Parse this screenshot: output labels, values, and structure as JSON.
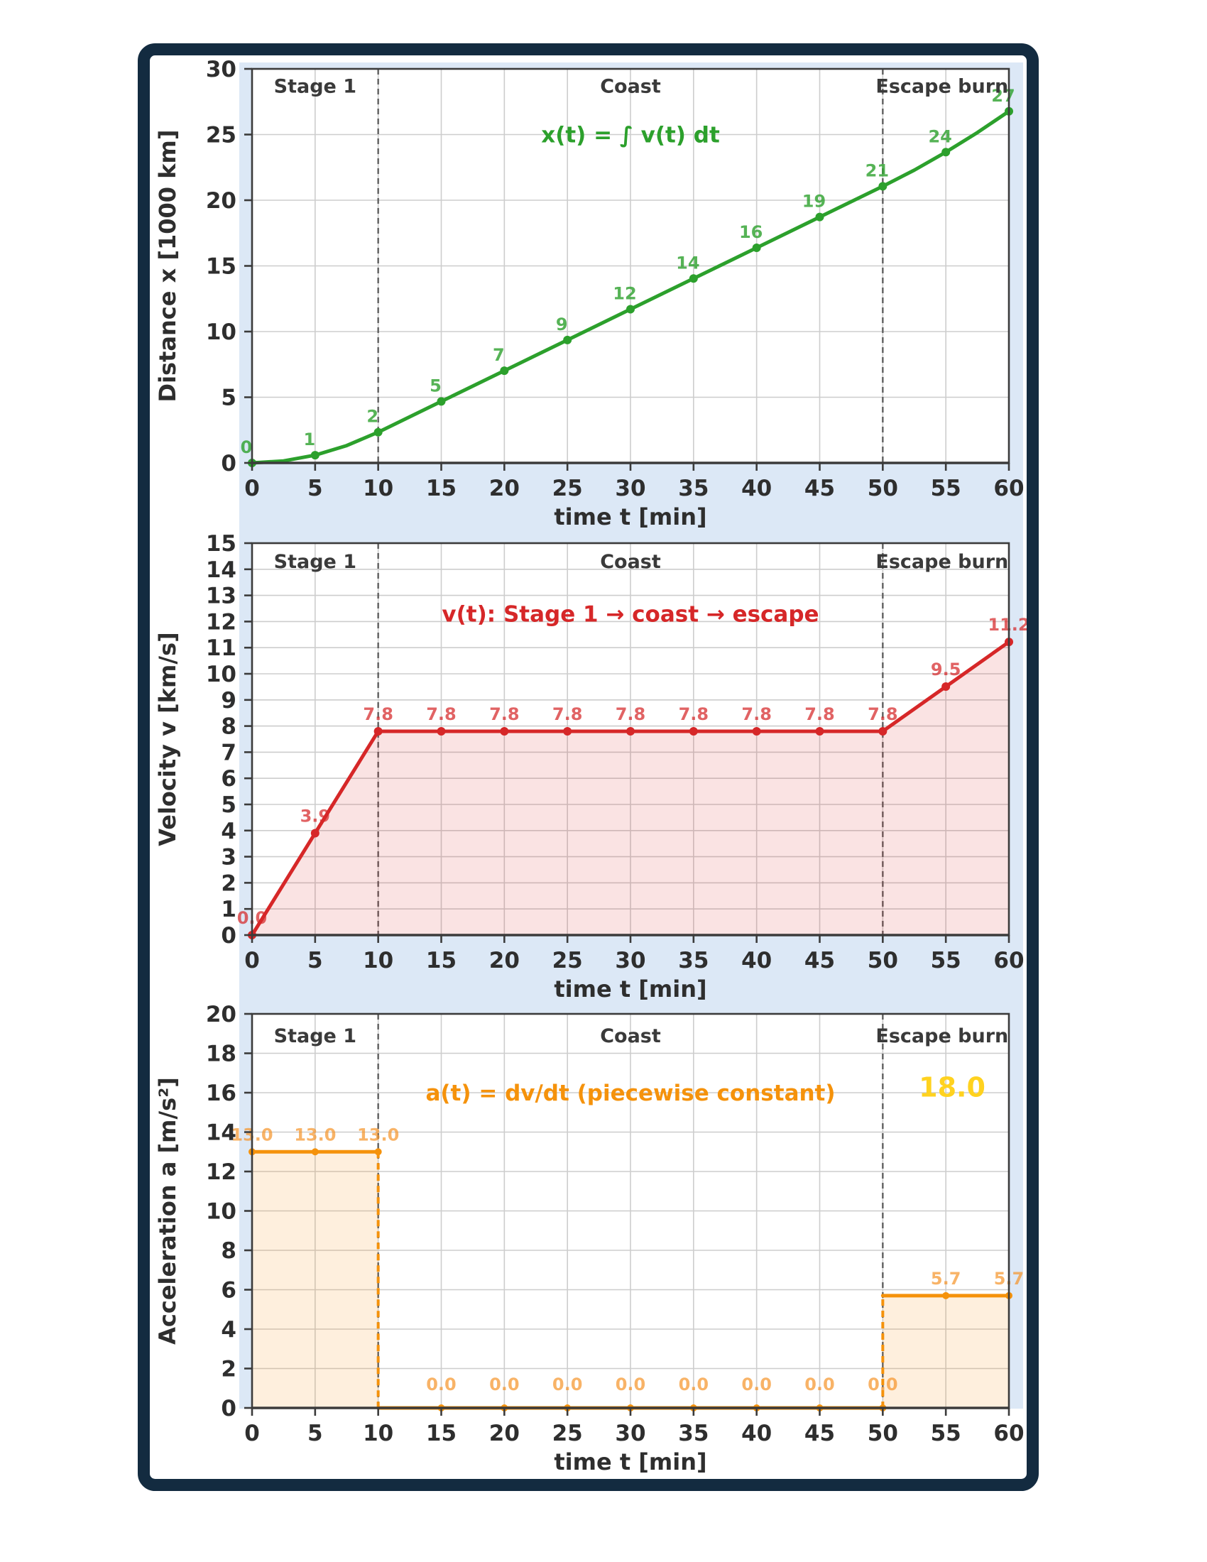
{
  "figure": {
    "background": "#ffffff",
    "frame_color": "#132b40",
    "panel_color": "#dce8f6",
    "plot_background": "#ffffff",
    "grid_color": "#cdcdcd",
    "spine_color": "#3b3b3b",
    "boundary_line_color": "#5f5f5f",
    "tick_text_color": "#2e2e2e",
    "region_text_color": "#3a3a3a",
    "xlabel": "time t [min]",
    "x_range": [
      0,
      60
    ],
    "x_ticks": [
      0,
      5,
      10,
      15,
      20,
      25,
      30,
      35,
      40,
      45,
      50,
      55,
      60
    ],
    "stage_boundaries": [
      10,
      50
    ],
    "region_labels": [
      "Stage 1",
      "Coast",
      "Escape burn"
    ],
    "region_positions_t": [
      5,
      30,
      55
    ]
  },
  "chart_data": [
    {
      "name": "distance",
      "type": "line",
      "title": "x(t) = ∫ v(t) dt",
      "ylabel": "Distance x [1000 km]",
      "xlabel": "time t [min]",
      "ylim": [
        0,
        30
      ],
      "yticks": [
        0,
        5,
        10,
        15,
        20,
        25,
        30
      ],
      "color": "#2ca02c",
      "label_color": "#2ca02c",
      "label_opacity": 0.8,
      "regions": [
        {
          "label": "Stage 1",
          "t": 5
        },
        {
          "label": "Coast",
          "t": 30
        },
        {
          "label": "Escape burn",
          "t": 54.7
        }
      ],
      "region_label_y": 28.2,
      "annotation": {
        "text": "x(t) = ∫ v(t) dt",
        "t": 30,
        "y": 24.4,
        "color": "#2ca02c"
      },
      "x": [
        0,
        5,
        10,
        15,
        20,
        25,
        30,
        35,
        40,
        45,
        50,
        55,
        60
      ],
      "values": [
        0,
        0.59,
        2.34,
        4.68,
        7.02,
        9.36,
        11.7,
        14.04,
        16.38,
        18.72,
        21.06,
        23.66,
        26.77
      ],
      "point_labels": [
        "0",
        "1",
        "2",
        "5",
        "7",
        "9",
        "12",
        "14",
        "16",
        "19",
        "21",
        "24",
        "27"
      ],
      "line": {
        "x": [
          0,
          2.5,
          5,
          7.5,
          10,
          15,
          20,
          25,
          30,
          35,
          40,
          45,
          50,
          52.5,
          55,
          57.5,
          60
        ],
        "y": [
          0,
          0.15,
          0.59,
          1.32,
          2.34,
          4.68,
          7.02,
          9.36,
          11.7,
          14.04,
          16.38,
          18.72,
          21.06,
          22.29,
          23.66,
          25.15,
          26.77
        ]
      }
    },
    {
      "name": "velocity",
      "type": "area",
      "title": "v(t): Stage 1 → coast → escape",
      "ylabel": "Velocity v [km/s]",
      "xlabel": "time t [min]",
      "ylim": [
        0,
        15
      ],
      "yticks": [
        0,
        1,
        2,
        3,
        4,
        5,
        6,
        7,
        8,
        9,
        10,
        11,
        12,
        13,
        14,
        15
      ],
      "color": "#d62728",
      "fill": "rgba(214,39,40,0.13)",
      "label_color": "#d62728",
      "label_opacity": 0.72,
      "regions": [
        {
          "label": "Stage 1",
          "t": 5
        },
        {
          "label": "Coast",
          "t": 30
        },
        {
          "label": "Escape burn",
          "t": 54.7
        }
      ],
      "region_label_y": 14.05,
      "annotation": {
        "text": "v(t): Stage 1 → coast → escape",
        "t": 30,
        "y": 12.0,
        "color": "#d62728"
      },
      "x": [
        0,
        5,
        10,
        15,
        20,
        25,
        30,
        35,
        40,
        45,
        50,
        55,
        60
      ],
      "values": [
        0,
        3.9,
        7.8,
        7.8,
        7.8,
        7.8,
        7.8,
        7.8,
        7.8,
        7.8,
        7.8,
        9.51,
        11.22
      ],
      "point_labels": [
        "0.0",
        "3.9",
        "7.8",
        "7.8",
        "7.8",
        "7.8",
        "7.8",
        "7.8",
        "7.8",
        "7.8",
        "7.8",
        "9.5",
        "11.2"
      ],
      "line": {
        "x": [
          0,
          5,
          10,
          50,
          55,
          60
        ],
        "y": [
          0,
          3.9,
          7.8,
          7.8,
          9.51,
          11.22
        ]
      }
    },
    {
      "name": "acceleration",
      "type": "step",
      "title": "a(t) = dv/dt (piecewise constant)",
      "ylabel": "Acceleration a [m/s²]",
      "xlabel": "time t [min]",
      "ylim": [
        0,
        20
      ],
      "yticks": [
        0,
        2,
        4,
        6,
        8,
        10,
        12,
        14,
        16,
        18,
        20
      ],
      "color": "#f5920b",
      "fill": "rgba(246,146,30,0.15)",
      "label_color": "#f59327",
      "label_opacity": 0.7,
      "regions": [
        {
          "label": "Stage 1",
          "t": 5
        },
        {
          "label": "Coast",
          "t": 30
        },
        {
          "label": "Escape burn",
          "t": 54.7
        }
      ],
      "region_label_y": 18.55,
      "annotation": {
        "text": "a(t) = dv/dt (piecewise constant)",
        "t": 30,
        "y": 15.6,
        "color": "#f5920b"
      },
      "extra_label": {
        "text": "18.0",
        "t": 55.5,
        "y": 15.8,
        "color": "#ffd21f"
      },
      "segments": [
        {
          "t0": 0,
          "t1": 10,
          "value": 13
        },
        {
          "t0": 10,
          "t1": 50,
          "value": 0
        },
        {
          "t0": 50,
          "t1": 60,
          "value": 5.7
        }
      ],
      "x": [
        0,
        5,
        10,
        15,
        20,
        25,
        30,
        35,
        40,
        45,
        50,
        55,
        60
      ],
      "values": [
        13,
        13,
        13,
        0,
        0,
        0,
        0,
        0,
        0,
        0,
        0,
        5.7,
        5.7
      ],
      "point_labels": [
        "13.0",
        "13.0",
        "13.0",
        "0.0",
        "0.0",
        "0.0",
        "0.0",
        "0.0",
        "0.0",
        "0.0",
        "0.0",
        "5.7",
        "5.7"
      ]
    }
  ]
}
